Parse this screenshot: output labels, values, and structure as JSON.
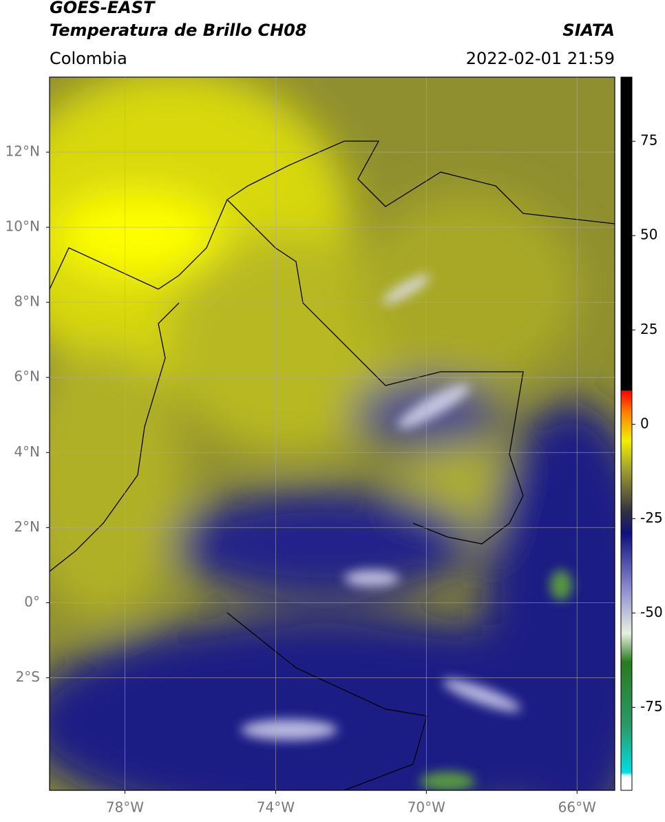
{
  "header": {
    "title": "GOES-EAST",
    "subtitle": "Temperatura de Brillo CH08",
    "region": "Colombia",
    "source": "SIATA",
    "datetime": "2022-02-01 21:59"
  },
  "map": {
    "xlim": [
      -80,
      -65
    ],
    "ylim": [
      -5,
      14
    ],
    "xticks": [
      {
        "value": -78,
        "label": "78°W"
      },
      {
        "value": -74,
        "label": "74°W"
      },
      {
        "value": -70,
        "label": "70°W"
      },
      {
        "value": -66,
        "label": "66°W"
      }
    ],
    "yticks": [
      {
        "value": 12,
        "label": "12°N"
      },
      {
        "value": 10,
        "label": "10°N"
      },
      {
        "value": 8,
        "label": "8°N"
      },
      {
        "value": 6,
        "label": "6°N"
      },
      {
        "value": 4,
        "label": "4°N"
      },
      {
        "value": 2,
        "label": "2°N"
      },
      {
        "value": 0,
        "label": "0°"
      },
      {
        "value": -2,
        "label": "2°S"
      }
    ],
    "grid": true
  },
  "colorbar": {
    "lim": [
      -97,
      92
    ],
    "ticks": [
      75,
      50,
      25,
      0,
      -25,
      -50,
      -75
    ]
  }
}
